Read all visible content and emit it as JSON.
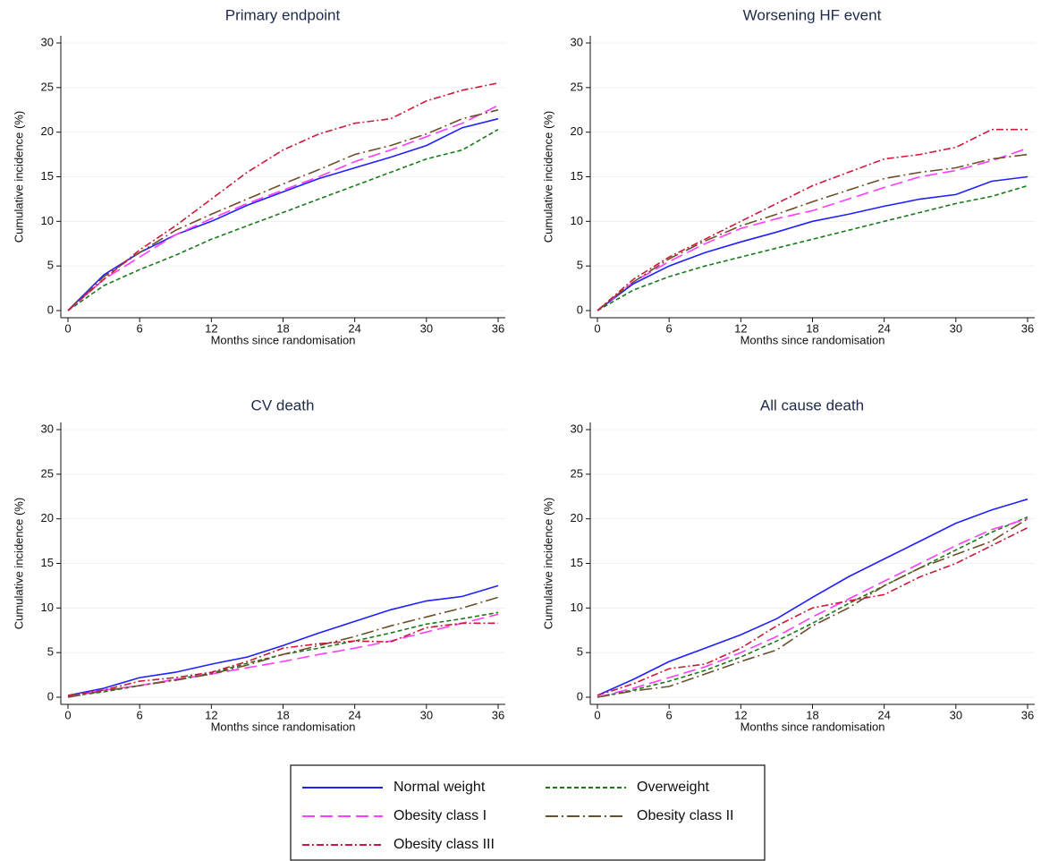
{
  "legend": [
    {
      "name": "Normal weight",
      "color": "#1f1fff",
      "style": "solid"
    },
    {
      "name": "Overweight",
      "color": "#1a7a1a",
      "style": "dash"
    },
    {
      "name": "Obesity class I",
      "color": "#ff3cff",
      "style": "longdash"
    },
    {
      "name": "Obesity class II",
      "color": "#6b4f2a",
      "style": "longdashdot"
    },
    {
      "name": "Obesity class III",
      "color": "#cc1a3a",
      "style": "dashdot"
    }
  ],
  "chart_data": [
    {
      "type": "line",
      "title": "Primary endpoint",
      "x_label": "Months since randomisation",
      "y_label": "Cumulative incidence (%)",
      "xlim": [
        0,
        36
      ],
      "ylim": [
        0,
        30
      ],
      "xticks": [
        0,
        6,
        12,
        18,
        24,
        30,
        36
      ],
      "yticks": [
        0,
        5,
        10,
        15,
        20,
        25,
        30
      ],
      "grid": true,
      "x": [
        0,
        3,
        6,
        9,
        12,
        15,
        18,
        21,
        24,
        27,
        30,
        33,
        36
      ],
      "series": [
        {
          "values": [
            0,
            4,
            6.5,
            8.5,
            10,
            11.8,
            13.3,
            14.8,
            16,
            17.2,
            18.5,
            20.5,
            21.5
          ]
        },
        {
          "values": [
            0,
            2.8,
            4.6,
            6.2,
            8,
            9.5,
            11,
            12.5,
            14,
            15.5,
            17,
            18,
            20.3
          ]
        },
        {
          "values": [
            0,
            3.5,
            6,
            8.5,
            10.3,
            12,
            13.5,
            15,
            16.7,
            18,
            19.5,
            21,
            23
          ]
        },
        {
          "values": [
            0,
            3.8,
            6.5,
            9,
            10.8,
            12.5,
            14.2,
            15.8,
            17.5,
            18.5,
            19.8,
            21.5,
            22.5
          ]
        },
        {
          "values": [
            0,
            3.5,
            6.8,
            9.5,
            12.5,
            15.5,
            18,
            19.8,
            21,
            21.5,
            23.5,
            24.7,
            25.5
          ]
        }
      ]
    },
    {
      "type": "line",
      "title": "Worsening HF event",
      "x_label": "Months since randomisation",
      "y_label": "Cumulative incidence (%)",
      "xlim": [
        0,
        36
      ],
      "ylim": [
        0,
        30
      ],
      "xticks": [
        0,
        6,
        12,
        18,
        24,
        30,
        36
      ],
      "yticks": [
        0,
        5,
        10,
        15,
        20,
        25,
        30
      ],
      "grid": true,
      "x": [
        0,
        3,
        6,
        9,
        12,
        15,
        18,
        21,
        24,
        27,
        30,
        33,
        36
      ],
      "series": [
        {
          "values": [
            0,
            3,
            5,
            6.5,
            7.7,
            8.8,
            10,
            10.8,
            11.7,
            12.5,
            13,
            14.5,
            15
          ]
        },
        {
          "values": [
            0,
            2.3,
            3.8,
            5,
            6,
            7,
            8,
            9,
            10,
            11,
            12,
            12.8,
            14
          ]
        },
        {
          "values": [
            0,
            3.2,
            5.5,
            7.5,
            9.2,
            10.3,
            11.2,
            12.5,
            13.8,
            15,
            15.7,
            16.8,
            18.2
          ]
        },
        {
          "values": [
            0,
            3.2,
            5.8,
            7.8,
            9.5,
            10.8,
            12.2,
            13.5,
            14.8,
            15.5,
            16,
            17,
            17.5
          ]
        },
        {
          "values": [
            0,
            3.5,
            6,
            8,
            10,
            12,
            14,
            15.5,
            17,
            17.5,
            18.3,
            20.3,
            20.3
          ]
        }
      ]
    },
    {
      "type": "line",
      "title": "CV death",
      "x_label": "Months since randomisation",
      "y_label": "Cumulative incidence (%)",
      "xlim": [
        0,
        36
      ],
      "ylim": [
        0,
        30
      ],
      "xticks": [
        0,
        6,
        12,
        18,
        24,
        30,
        36
      ],
      "yticks": [
        0,
        5,
        10,
        15,
        20,
        25,
        30
      ],
      "grid": true,
      "x": [
        0,
        3,
        6,
        9,
        12,
        15,
        18,
        21,
        24,
        27,
        30,
        33,
        36
      ],
      "series": [
        {
          "values": [
            0.2,
            1,
            2.2,
            2.8,
            3.7,
            4.5,
            5.8,
            7.2,
            8.5,
            9.8,
            10.8,
            11.3,
            12.5
          ]
        },
        {
          "values": [
            0.1,
            0.6,
            1.3,
            2,
            2.7,
            3.8,
            4.8,
            5.5,
            6.3,
            7.2,
            8.2,
            8.8,
            9.5
          ]
        },
        {
          "values": [
            0,
            0.8,
            1.3,
            2,
            2.6,
            3.3,
            4,
            4.8,
            5.5,
            6.3,
            7.3,
            8.3,
            9.3
          ]
        },
        {
          "values": [
            0,
            0.7,
            1.3,
            1.9,
            2.6,
            3.6,
            4.8,
            5.8,
            6.8,
            8,
            9,
            10,
            11.2
          ]
        },
        {
          "values": [
            0.2,
            0.8,
            1.8,
            2.2,
            2.8,
            4,
            5.5,
            6,
            6.3,
            6.2,
            7.8,
            8.3,
            8.3
          ]
        }
      ]
    },
    {
      "type": "line",
      "title": "All cause death",
      "x_label": "Months since randomisation",
      "y_label": "Cumulative incidence (%)",
      "xlim": [
        0,
        36
      ],
      "ylim": [
        0,
        30
      ],
      "xticks": [
        0,
        6,
        12,
        18,
        24,
        30,
        36
      ],
      "yticks": [
        0,
        5,
        10,
        15,
        20,
        25,
        30
      ],
      "grid": true,
      "x": [
        0,
        3,
        6,
        9,
        12,
        15,
        18,
        21,
        24,
        27,
        30,
        33,
        36
      ],
      "series": [
        {
          "values": [
            0.2,
            2,
            4,
            5.5,
            7,
            8.8,
            11.2,
            13.5,
            15.5,
            17.5,
            19.5,
            21,
            22.2
          ]
        },
        {
          "values": [
            0,
            0.8,
            1.8,
            3,
            4.5,
            6.3,
            8.3,
            10.5,
            12.5,
            14.5,
            16.5,
            18.5,
            20.2
          ]
        },
        {
          "values": [
            0,
            1,
            2.2,
            3.4,
            5,
            6.8,
            9,
            11,
            13,
            15,
            17,
            18.8,
            20
          ]
        },
        {
          "values": [
            0,
            0.7,
            1.2,
            2.6,
            4,
            5.3,
            8,
            10,
            12.5,
            14.5,
            16,
            17.5,
            20
          ]
        },
        {
          "values": [
            0.2,
            1.5,
            3.2,
            3.7,
            5.5,
            8,
            10,
            10.8,
            11.5,
            13.5,
            15,
            17,
            19
          ]
        }
      ]
    }
  ]
}
